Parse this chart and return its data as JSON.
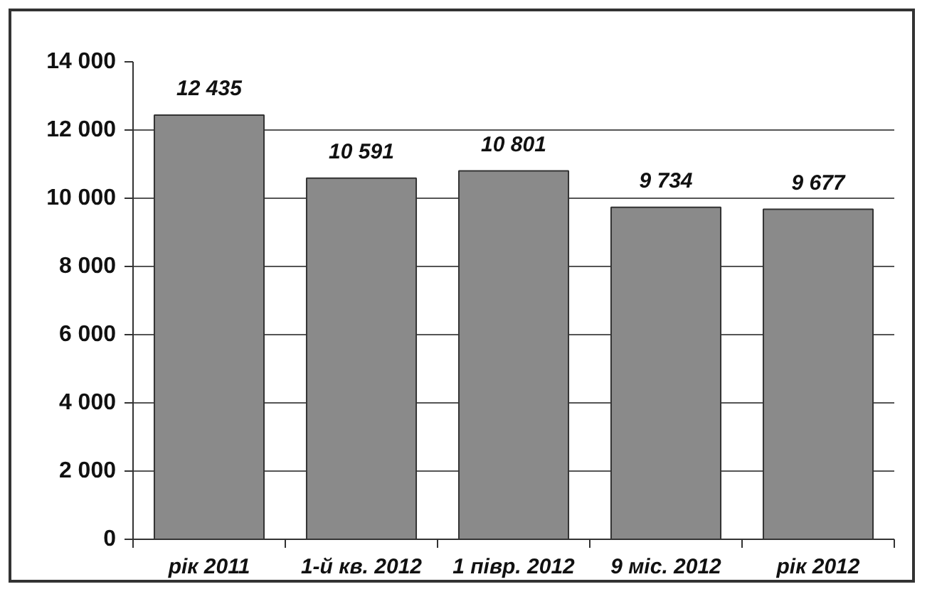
{
  "chart_data": {
    "type": "bar",
    "categories": [
      "рік 2011",
      "1-й кв. 2012",
      "1 півр. 2012",
      "9 міс. 2012",
      "рік 2012"
    ],
    "values": [
      12435,
      10591,
      10801,
      9734,
      9677
    ],
    "value_labels": [
      "12 435",
      "10 591",
      "10 801",
      "9 734",
      "9 677"
    ],
    "color": "#8a8a8a",
    "ylim": [
      0,
      14000
    ],
    "yticks": [
      0,
      {
        "value": 2000,
        "label": "2 000"
      },
      {
        "value": 4000,
        "label": "4 000"
      },
      {
        "value": 6000,
        "label": "6 000"
      },
      {
        "value": 8000,
        "label": "8 000"
      },
      {
        "value": 10000,
        "label": "10 000"
      },
      {
        "value": 12000,
        "label": "12 000"
      },
      {
        "value": 14000,
        "label": "14 000"
      }
    ],
    "grid": "y"
  }
}
